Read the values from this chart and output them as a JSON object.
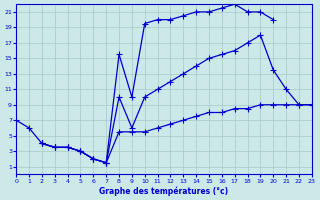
{
  "title": "Graphe des températures (°c)",
  "bg_color": "#cce8e8",
  "grid_color": "#aac8c8",
  "line_color": "#0000cc",
  "xlim": [
    0,
    23
  ],
  "ylim": [
    0,
    22
  ],
  "xticks": [
    0,
    1,
    2,
    3,
    4,
    5,
    6,
    7,
    8,
    9,
    10,
    11,
    12,
    13,
    14,
    15,
    16,
    17,
    18,
    19,
    20,
    21,
    22,
    23
  ],
  "yticks": [
    1,
    3,
    5,
    7,
    9,
    11,
    13,
    15,
    17,
    19,
    21
  ],
  "line1_x": [
    0,
    1,
    2,
    3,
    4,
    5,
    6,
    7,
    8,
    9,
    10,
    11,
    12,
    13,
    14,
    15,
    16,
    17,
    18,
    19,
    20
  ],
  "line1_y": [
    7,
    6,
    4,
    3.5,
    3.5,
    3,
    2,
    1.5,
    15.5,
    10,
    19.5,
    20,
    20,
    20.5,
    21,
    21,
    21.5,
    22,
    21,
    21,
    20
  ],
  "line2_x": [
    2,
    3,
    4,
    5,
    6,
    7,
    8,
    9,
    10,
    11,
    12,
    13,
    14,
    15,
    16,
    17,
    18,
    19,
    20,
    21,
    22,
    23
  ],
  "line2_y": [
    4,
    3.5,
    3.5,
    3,
    2,
    1.5,
    10,
    6,
    10,
    11,
    12,
    13,
    14,
    15,
    15.5,
    16,
    17,
    18,
    13.5,
    11,
    9,
    9
  ],
  "line3_x": [
    2,
    3,
    4,
    5,
    6,
    7,
    8,
    9,
    10,
    11,
    12,
    13,
    14,
    15,
    16,
    17,
    18,
    19,
    20,
    21,
    22,
    23
  ],
  "line3_y": [
    4,
    3.5,
    3.5,
    3,
    2,
    1.5,
    5.5,
    5.5,
    5.5,
    6,
    6.5,
    7,
    7.5,
    8,
    8,
    8.5,
    8.5,
    9,
    9,
    9,
    9,
    9
  ]
}
